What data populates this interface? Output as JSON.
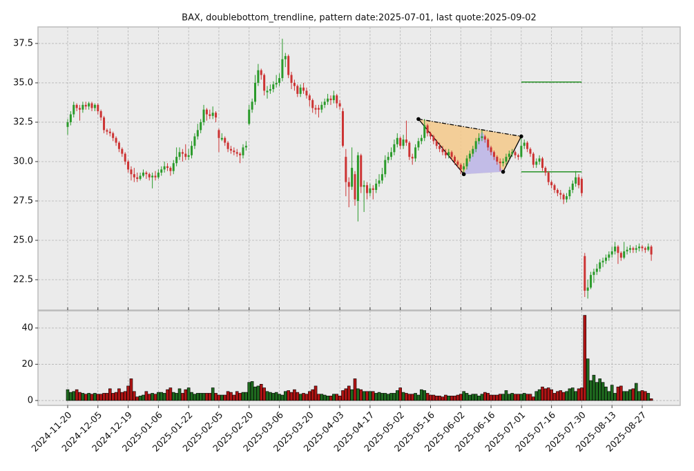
{
  "chart_data": {
    "type": "candlestick",
    "title": "BAX, doublebottom_trendline, pattern date:2025-07-01, last quote:2025-09-02",
    "categories": [
      "2024-11-20",
      null,
      null,
      null,
      null,
      null,
      null,
      null,
      null,
      null,
      "2024-12-05",
      null,
      null,
      null,
      null,
      null,
      null,
      null,
      null,
      null,
      "2024-12-19",
      null,
      null,
      null,
      null,
      null,
      null,
      null,
      null,
      null,
      "2025-01-06",
      null,
      null,
      null,
      null,
      null,
      null,
      null,
      null,
      null,
      "2025-01-22",
      null,
      null,
      null,
      null,
      null,
      null,
      null,
      null,
      null,
      "2025-02-05",
      null,
      null,
      null,
      null,
      null,
      null,
      null,
      null,
      null,
      "2025-02-20",
      null,
      null,
      null,
      null,
      null,
      null,
      null,
      null,
      null,
      "2025-03-06",
      null,
      null,
      null,
      null,
      null,
      null,
      null,
      null,
      null,
      "2025-03-20",
      null,
      null,
      null,
      null,
      null,
      null,
      null,
      null,
      null,
      "2025-04-03",
      null,
      null,
      null,
      null,
      null,
      null,
      null,
      null,
      null,
      "2025-04-17",
      null,
      null,
      null,
      null,
      null,
      null,
      null,
      null,
      null,
      "2025-05-02",
      null,
      null,
      null,
      null,
      null,
      null,
      null,
      null,
      null,
      "2025-05-16",
      null,
      null,
      null,
      null,
      null,
      null,
      null,
      null,
      null,
      "2025-06-02",
      null,
      null,
      null,
      null,
      null,
      null,
      null,
      null,
      null,
      "2025-06-16",
      null,
      null,
      null,
      null,
      null,
      null,
      null,
      null,
      null,
      "2025-07-01",
      null,
      null,
      null,
      null,
      null,
      null,
      null,
      null,
      null,
      "2025-07-16",
      null,
      null,
      null,
      null,
      null,
      null,
      null,
      null,
      null,
      "2025-07-30",
      null,
      null,
      null,
      null,
      null,
      null,
      null,
      null,
      null,
      "2025-08-13",
      null,
      null,
      null,
      null,
      null,
      null,
      null,
      null,
      null,
      "2025-08-27",
      null,
      null,
      null
    ],
    "ohlc": [
      [
        32.2,
        32.7,
        31.7,
        32.5
      ],
      [
        32.5,
        33.2,
        32.3,
        33.0
      ],
      [
        33.0,
        33.8,
        32.8,
        33.6
      ],
      [
        33.6,
        33.7,
        33.2,
        33.4
      ],
      [
        33.4,
        33.6,
        32.6,
        33.3
      ],
      [
        33.3,
        33.8,
        33.1,
        33.6
      ],
      [
        33.6,
        33.8,
        33.3,
        33.5
      ],
      [
        33.5,
        33.8,
        33.3,
        33.7
      ],
      [
        33.7,
        33.8,
        33.2,
        33.4
      ],
      [
        33.4,
        33.7,
        33.2,
        33.6
      ],
      [
        33.6,
        33.7,
        33.0,
        33.2
      ],
      [
        33.2,
        33.3,
        32.6,
        32.8
      ],
      [
        32.8,
        32.9,
        31.8,
        32.0
      ],
      [
        32.0,
        32.1,
        31.7,
        31.9
      ],
      [
        31.9,
        32.1,
        31.6,
        31.8
      ],
      [
        31.8,
        31.9,
        31.3,
        31.5
      ],
      [
        31.5,
        31.6,
        31.0,
        31.2
      ],
      [
        31.2,
        31.3,
        30.6,
        30.8
      ],
      [
        30.8,
        30.9,
        30.3,
        30.5
      ],
      [
        30.5,
        30.6,
        29.8,
        30.0
      ],
      [
        30.0,
        30.1,
        29.3,
        29.5
      ],
      [
        29.5,
        29.7,
        28.8,
        29.2
      ],
      [
        29.2,
        29.6,
        28.7,
        29.0
      ],
      [
        29.0,
        29.3,
        28.7,
        28.9
      ],
      [
        28.9,
        29.3,
        28.8,
        29.1
      ],
      [
        29.1,
        29.5,
        29.0,
        29.3
      ],
      [
        29.3,
        29.4,
        28.9,
        29.2
      ],
      [
        29.2,
        29.3,
        28.8,
        29.0
      ],
      [
        29.0,
        29.3,
        28.3,
        29.1
      ],
      [
        29.1,
        29.4,
        28.8,
        29.0
      ],
      [
        29.0,
        29.5,
        28.9,
        29.3
      ],
      [
        29.3,
        29.7,
        29.1,
        29.5
      ],
      [
        29.5,
        30.0,
        29.3,
        29.7
      ],
      [
        29.7,
        29.9,
        29.4,
        29.6
      ],
      [
        29.6,
        29.7,
        29.1,
        29.4
      ],
      [
        29.4,
        30.1,
        29.2,
        29.9
      ],
      [
        29.9,
        30.9,
        29.7,
        30.3
      ],
      [
        30.3,
        30.9,
        30.1,
        30.6
      ],
      [
        30.6,
        30.8,
        30.0,
        30.5
      ],
      [
        30.5,
        31.1,
        30.1,
        30.3
      ],
      [
        30.3,
        30.8,
        30.1,
        30.4
      ],
      [
        30.4,
        31.3,
        30.2,
        31.0
      ],
      [
        31.0,
        31.8,
        30.8,
        31.6
      ],
      [
        31.6,
        32.4,
        31.4,
        32.0
      ],
      [
        32.0,
        32.7,
        31.8,
        32.5
      ],
      [
        32.5,
        33.6,
        32.3,
        33.3
      ],
      [
        33.3,
        33.4,
        32.6,
        33.0
      ],
      [
        33.0,
        33.3,
        32.7,
        32.9
      ],
      [
        32.9,
        33.5,
        32.7,
        33.1
      ],
      [
        33.1,
        33.2,
        32.5,
        32.8
      ],
      [
        32.0,
        32.1,
        30.6,
        31.5
      ],
      [
        31.4,
        31.8,
        31.3,
        31.5
      ],
      [
        31.5,
        31.6,
        31.0,
        31.2
      ],
      [
        31.2,
        31.3,
        30.6,
        30.8
      ],
      [
        30.8,
        31.0,
        30.5,
        30.7
      ],
      [
        30.7,
        30.9,
        30.4,
        30.6
      ],
      [
        30.6,
        30.8,
        30.3,
        30.5
      ],
      [
        30.5,
        30.6,
        29.9,
        30.4
      ],
      [
        30.4,
        31.1,
        30.2,
        30.9
      ],
      [
        30.9,
        31.3,
        30.7,
        31.0
      ],
      [
        32.4,
        33.6,
        32.3,
        33.3
      ],
      [
        33.3,
        34.0,
        33.1,
        33.8
      ],
      [
        33.8,
        35.5,
        33.6,
        35.0
      ],
      [
        35.0,
        36.2,
        34.8,
        35.8
      ],
      [
        35.8,
        35.9,
        35.2,
        35.5
      ],
      [
        35.5,
        35.6,
        34.2,
        34.5
      ],
      [
        34.4,
        34.8,
        34.0,
        34.5
      ],
      [
        34.5,
        34.9,
        34.3,
        34.6
      ],
      [
        34.6,
        35.1,
        34.4,
        34.9
      ],
      [
        34.9,
        35.5,
        34.7,
        35.0
      ],
      [
        35.0,
        35.6,
        34.8,
        35.3
      ],
      [
        35.3,
        37.8,
        35.1,
        36.5
      ],
      [
        36.5,
        36.9,
        36.0,
        36.7
      ],
      [
        36.7,
        36.8,
        35.3,
        35.5
      ],
      [
        35.5,
        35.7,
        34.6,
        35.0
      ],
      [
        35.0,
        35.2,
        34.5,
        34.8
      ],
      [
        34.8,
        34.9,
        34.1,
        34.3
      ],
      [
        34.3,
        34.9,
        34.1,
        34.7
      ],
      [
        34.7,
        35.0,
        34.3,
        34.5
      ],
      [
        34.5,
        34.7,
        34.0,
        34.2
      ],
      [
        34.2,
        34.3,
        33.5,
        33.9
      ],
      [
        33.9,
        34.0,
        33.1,
        33.4
      ],
      [
        33.4,
        33.6,
        33.0,
        33.3
      ],
      [
        33.4,
        33.6,
        32.8,
        33.3
      ],
      [
        33.3,
        33.8,
        33.1,
        33.6
      ],
      [
        33.6,
        34.0,
        33.4,
        33.8
      ],
      [
        33.8,
        34.3,
        33.6,
        34.0
      ],
      [
        34.0,
        34.2,
        33.6,
        33.9
      ],
      [
        33.9,
        34.5,
        33.7,
        34.2
      ],
      [
        34.2,
        34.3,
        33.4,
        33.7
      ],
      [
        33.7,
        33.9,
        33.3,
        33.5
      ],
      [
        33.2,
        33.4,
        30.9,
        31.0
      ],
      [
        30.3,
        30.8,
        27.8,
        28.7
      ],
      [
        28.7,
        29.0,
        27.1,
        28.4
      ],
      [
        28.4,
        30.9,
        28.2,
        29.6
      ],
      [
        29.2,
        29.4,
        27.2,
        27.6
      ],
      [
        27.5,
        30.6,
        26.2,
        30.4
      ],
      [
        30.4,
        30.5,
        28.0,
        28.4
      ],
      [
        28.4,
        28.8,
        26.8,
        28.5
      ],
      [
        28.5,
        28.7,
        27.6,
        28.0
      ],
      [
        28.0,
        28.6,
        27.8,
        28.3
      ],
      [
        28.3,
        28.5,
        27.6,
        28.2
      ],
      [
        28.2,
        28.9,
        28.0,
        28.6
      ],
      [
        28.6,
        29.2,
        28.4,
        28.8
      ],
      [
        28.8,
        29.6,
        28.6,
        29.2
      ],
      [
        29.2,
        30.4,
        29.0,
        30.1
      ],
      [
        30.1,
        30.6,
        29.9,
        30.3
      ],
      [
        30.3,
        30.9,
        30.1,
        30.6
      ],
      [
        30.6,
        31.4,
        30.4,
        31.1
      ],
      [
        31.1,
        31.8,
        30.9,
        31.5
      ],
      [
        31.5,
        31.6,
        30.8,
        31.0
      ],
      [
        31.0,
        31.7,
        30.8,
        31.4
      ],
      [
        31.4,
        32.6,
        31.0,
        31.2
      ],
      [
        31.2,
        31.3,
        30.1,
        30.3
      ],
      [
        30.3,
        30.5,
        29.8,
        30.2
      ],
      [
        30.2,
        31.1,
        30.0,
        30.9
      ],
      [
        30.9,
        31.5,
        30.7,
        31.3
      ],
      [
        31.3,
        31.7,
        31.1,
        31.5
      ],
      [
        31.5,
        32.7,
        31.3,
        32.3
      ],
      [
        32.3,
        32.4,
        31.6,
        31.8
      ],
      [
        31.8,
        31.9,
        31.4,
        31.6
      ],
      [
        31.6,
        31.7,
        31.1,
        31.3
      ],
      [
        31.3,
        31.4,
        30.8,
        31.0
      ],
      [
        31.0,
        31.2,
        30.6,
        30.8
      ],
      [
        30.8,
        31.0,
        30.4,
        30.6
      ],
      [
        30.6,
        30.8,
        30.2,
        30.4
      ],
      [
        30.4,
        30.8,
        30.2,
        30.6
      ],
      [
        30.6,
        30.7,
        30.1,
        30.3
      ],
      [
        30.3,
        30.4,
        29.8,
        30.0
      ],
      [
        30.0,
        30.1,
        29.6,
        29.8
      ],
      [
        29.8,
        29.9,
        29.2,
        29.5
      ],
      [
        29.5,
        29.9,
        29.3,
        29.7
      ],
      [
        29.7,
        30.4,
        29.5,
        30.2
      ],
      [
        30.2,
        30.7,
        30.0,
        30.5
      ],
      [
        30.5,
        31.0,
        30.3,
        30.8
      ],
      [
        30.8,
        31.5,
        30.6,
        31.3
      ],
      [
        31.3,
        31.8,
        31.1,
        31.5
      ],
      [
        31.5,
        32.0,
        31.3,
        31.6
      ],
      [
        31.6,
        31.7,
        31.2,
        31.4
      ],
      [
        31.4,
        31.5,
        30.7,
        30.9
      ],
      [
        30.9,
        31.0,
        30.4,
        30.6
      ],
      [
        30.6,
        30.7,
        30.1,
        30.3
      ],
      [
        30.3,
        30.4,
        29.8,
        30.0
      ],
      [
        30.0,
        30.2,
        29.4,
        29.9
      ],
      [
        29.9,
        30.2,
        29.7,
        30.0
      ],
      [
        30.0,
        30.5,
        29.8,
        30.3
      ],
      [
        30.3,
        30.7,
        30.1,
        30.5
      ],
      [
        30.5,
        30.8,
        30.3,
        30.6
      ],
      [
        30.6,
        30.7,
        30.2,
        30.4
      ],
      [
        30.4,
        30.5,
        30.1,
        30.3
      ],
      [
        30.3,
        31.6,
        30.2,
        31.0
      ],
      [
        31.0,
        31.4,
        30.8,
        31.2
      ],
      [
        31.2,
        31.3,
        30.6,
        30.8
      ],
      [
        30.8,
        30.9,
        30.3,
        30.5
      ],
      [
        30.5,
        30.6,
        29.6,
        29.8
      ],
      [
        29.8,
        30.2,
        29.6,
        30.0
      ],
      [
        30.0,
        30.4,
        29.8,
        30.2
      ],
      [
        30.2,
        30.3,
        29.4,
        29.6
      ],
      [
        29.6,
        29.7,
        29.1,
        29.3
      ],
      [
        29.3,
        29.4,
        28.5,
        28.7
      ],
      [
        28.7,
        28.8,
        28.3,
        28.5
      ],
      [
        28.5,
        28.6,
        28.0,
        28.2
      ],
      [
        28.2,
        28.3,
        27.8,
        28.0
      ],
      [
        28.0,
        28.2,
        27.6,
        27.9
      ],
      [
        27.9,
        28.0,
        27.3,
        27.6
      ],
      [
        27.6,
        28.0,
        27.4,
        27.8
      ],
      [
        27.8,
        28.4,
        27.6,
        28.2
      ],
      [
        28.2,
        28.8,
        28.0,
        28.6
      ],
      [
        28.6,
        29.4,
        28.4,
        29.0
      ],
      [
        29.0,
        29.2,
        28.3,
        28.5
      ],
      [
        28.9,
        29.0,
        27.8,
        28.0
      ],
      [
        24.0,
        24.2,
        21.4,
        21.8
      ],
      [
        21.8,
        22.5,
        21.3,
        22.0
      ],
      [
        22.0,
        23.0,
        21.9,
        22.8
      ],
      [
        22.8,
        23.2,
        22.3,
        23.0
      ],
      [
        23.0,
        23.5,
        22.8,
        23.2
      ],
      [
        23.2,
        23.8,
        23.0,
        23.6
      ],
      [
        23.6,
        23.9,
        23.3,
        23.7
      ],
      [
        23.7,
        24.1,
        23.5,
        23.9
      ],
      [
        23.9,
        24.3,
        23.7,
        24.1
      ],
      [
        24.1,
        24.6,
        23.9,
        24.3
      ],
      [
        24.3,
        24.9,
        24.1,
        24.6
      ],
      [
        24.6,
        24.7,
        23.5,
        24.2
      ],
      [
        24.2,
        24.3,
        23.7,
        23.9
      ],
      [
        23.9,
        24.9,
        23.8,
        24.3
      ],
      [
        24.3,
        24.6,
        24.1,
        24.4
      ],
      [
        24.4,
        24.7,
        24.2,
        24.5
      ],
      [
        24.5,
        24.6,
        24.2,
        24.4
      ],
      [
        24.4,
        24.7,
        24.2,
        24.5
      ],
      [
        24.5,
        24.8,
        24.3,
        24.6
      ],
      [
        24.6,
        24.7,
        24.3,
        24.5
      ],
      [
        24.5,
        24.6,
        24.2,
        24.4
      ],
      [
        24.4,
        24.8,
        24.3,
        24.6
      ],
      [
        24.6,
        24.7,
        23.7,
        24.1
      ]
    ],
    "volume": [
      6,
      4.5,
      5,
      6,
      4.5,
      4,
      3.5,
      4,
      3.5,
      4,
      3.5,
      3.5,
      4,
      4,
      6.5,
      4,
      4.5,
      6.5,
      4.5,
      5,
      8,
      12,
      5,
      2,
      2.5,
      3,
      5,
      3.5,
      4,
      3.5,
      4.5,
      4.5,
      4,
      6,
      7,
      4.5,
      4,
      6.5,
      4,
      6,
      7,
      4.5,
      3.5,
      4,
      4,
      4,
      4,
      4,
      7,
      4,
      3,
      3,
      3,
      5,
      4.5,
      3,
      5,
      4,
      4.5,
      4.5,
      10,
      10.5,
      7.5,
      8,
      9,
      7,
      5,
      4.5,
      4,
      4.5,
      3.5,
      3,
      5,
      5.5,
      4.5,
      6,
      4.5,
      3.5,
      4,
      3.5,
      5,
      6,
      8,
      3.5,
      3.5,
      3,
      2.5,
      2.5,
      3.5,
      3.5,
      2.5,
      5.5,
      6.5,
      8,
      6,
      12,
      6.5,
      6,
      5,
      5,
      5,
      5,
      4,
      4.5,
      4,
      4,
      3.5,
      4,
      4,
      5.5,
      7,
      4.5,
      4,
      3.5,
      3.5,
      4,
      3,
      6,
      5.5,
      4,
      3,
      3,
      2.5,
      2.5,
      2,
      3,
      2.5,
      2.5,
      2.5,
      3,
      3.5,
      5,
      4,
      3,
      3.5,
      3.5,
      2.5,
      3.5,
      4.5,
      4,
      3,
      3,
      3,
      3.5,
      3.5,
      5.5,
      3.5,
      4,
      3.5,
      3.5,
      3.5,
      4,
      3.5,
      3.5,
      2,
      5,
      6,
      7.5,
      6.5,
      7,
      6,
      4,
      5,
      5.5,
      4.5,
      5,
      6.5,
      7,
      5,
      6.5,
      7,
      47,
      23,
      11,
      14,
      10,
      12,
      10,
      7.5,
      5,
      8.5,
      4,
      7.5,
      8,
      5,
      5,
      6,
      6.5,
      9.5,
      5,
      5.5,
      5,
      4,
      1
    ],
    "up_color": "#2a9a2a",
    "down_color": "#cc3333",
    "volume_up_color": "#1f6b1f",
    "volume_down_color": "#b01414",
    "ylim": [
      20.57,
      38.55
    ],
    "yticks": [
      22.5,
      {
        "value": 25,
        "label": "25.0"
      },
      27.5,
      {
        "value": 30,
        "label": "30.0"
      },
      32.5,
      {
        "value": 35,
        "label": "35.0"
      },
      37.5
    ],
    "volume_ylim": [
      -2.7,
      49.5
    ],
    "volume_yticks": [
      0,
      20,
      40
    ],
    "grid": true,
    "pattern": {
      "points": [
        {
          "index": 116,
          "value": 32.7
        },
        {
          "index": 131,
          "value": 29.2
        },
        {
          "index": 144,
          "value": 29.35
        },
        {
          "index": 150,
          "value": 31.6
        }
      ],
      "peak": {
        "index": 137,
        "value": 31.95
      },
      "fill_color": "#f5c98a",
      "peak_fill_color": "#b9b9f5",
      "levels": [
        {
          "value": 35.05,
          "start": 150,
          "end": 170,
          "color": "#118811"
        },
        {
          "value": 29.35,
          "start": 150,
          "end": 170,
          "color": "#118811"
        }
      ]
    }
  }
}
